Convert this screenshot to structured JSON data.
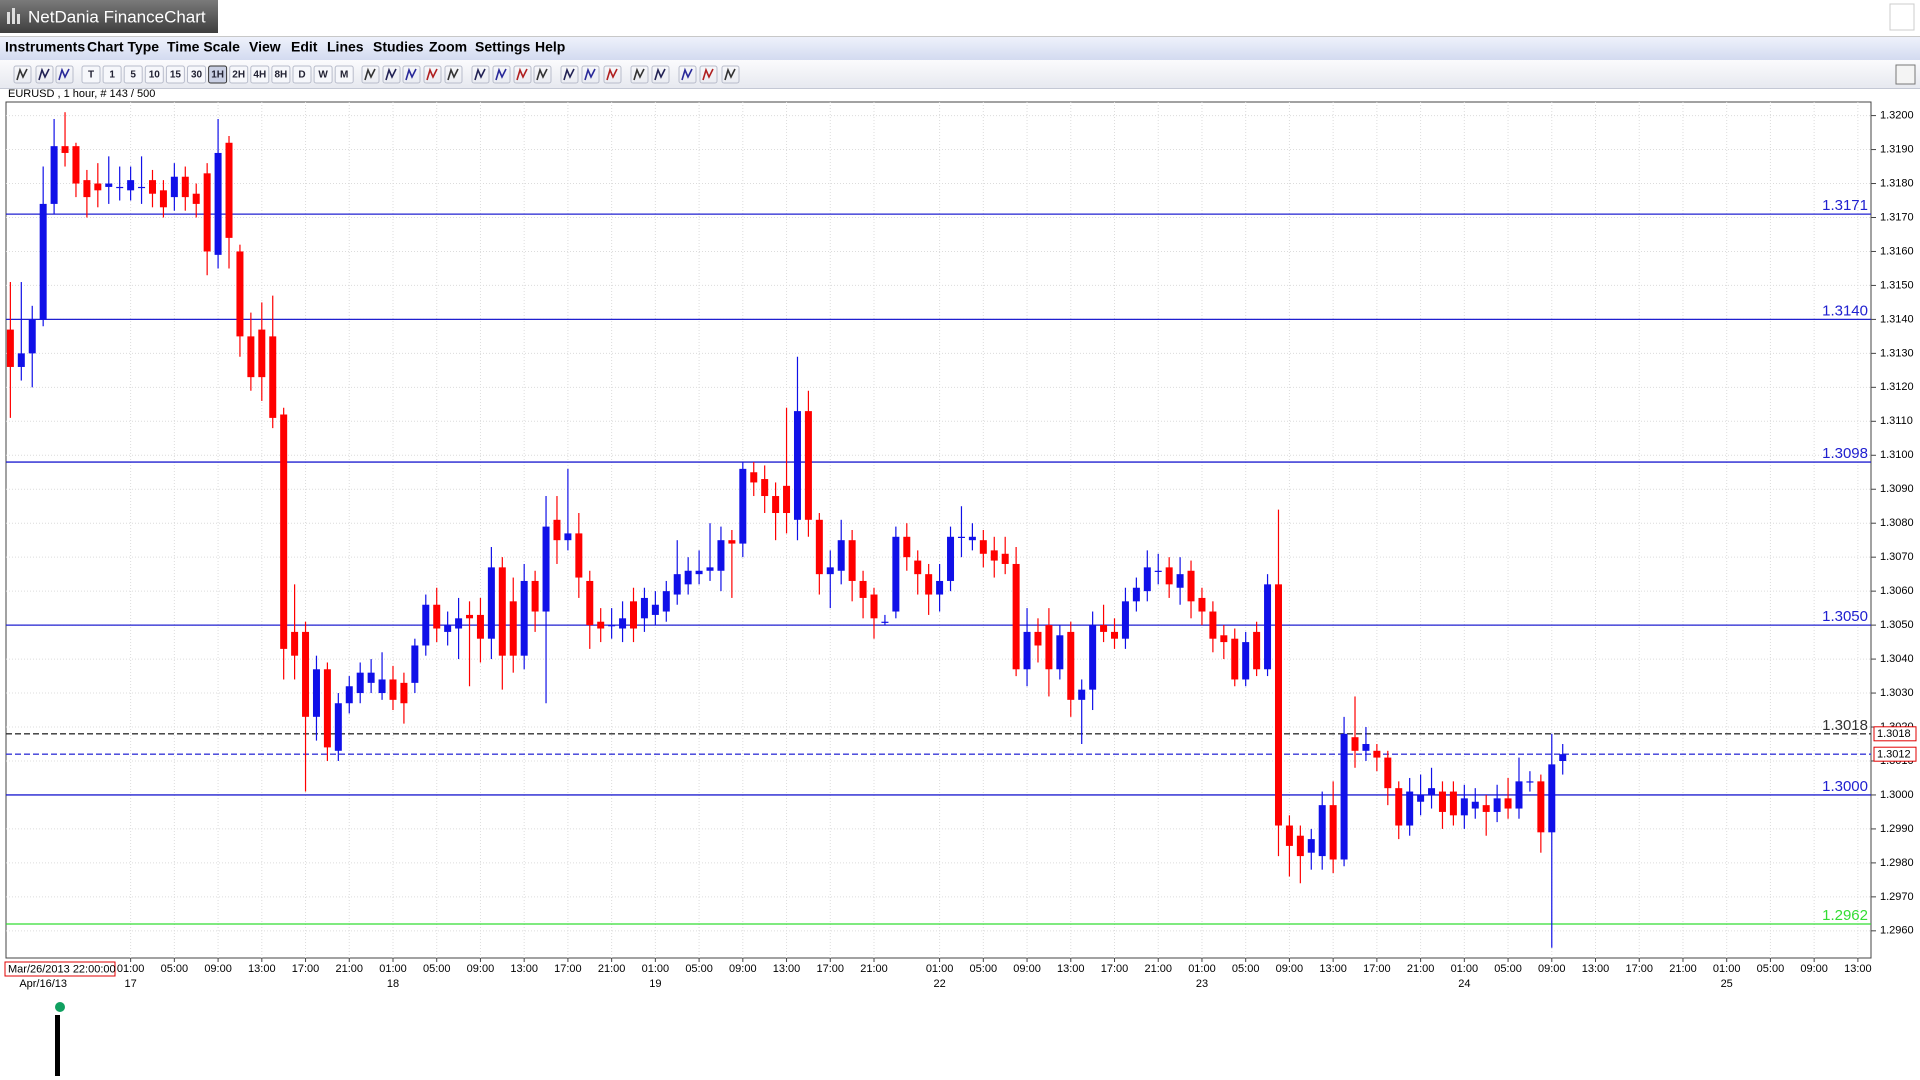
{
  "window": {
    "title": "NetDania FinanceChart",
    "menu": [
      "Instruments",
      "Chart Type",
      "Time Scale",
      "View",
      "Edit",
      "Lines",
      "Studies",
      "Zoom",
      "Settings",
      "Help"
    ],
    "timescales": [
      "T",
      "1",
      "5",
      "10",
      "15",
      "30",
      "1H",
      "2H",
      "4H",
      "8H",
      "D",
      "W",
      "M"
    ],
    "active_timescale": "1H"
  },
  "chart_data": {
    "type": "candlestick",
    "title": "EURUSD , 1 hour, # 143 / 500",
    "cursor_label": "Mar/26/2013 22:00:00",
    "up_color": "#1010e8",
    "down_color": "#ff0000",
    "open": [
      1.3137,
      1.3126,
      1.313,
      1.314,
      1.3174,
      1.3191,
      1.3191,
      1.3181,
      1.318,
      1.3179,
      1.3179,
      1.3178,
      1.3179,
      1.3181,
      1.3178,
      1.3176,
      1.3182,
      1.3177,
      1.3183,
      1.3159,
      1.3192,
      1.316,
      1.3135,
      1.3137,
      1.3135,
      1.3112,
      1.3048,
      1.3048,
      1.3023,
      1.3037,
      1.3013,
      1.3027,
      1.303,
      1.3033,
      1.303,
      1.3034,
      1.3033,
      1.3033,
      1.3044,
      1.3056,
      1.3048,
      1.3049,
      1.3053,
      1.3053,
      1.3046,
      1.3067,
      1.3057,
      1.3041,
      1.3063,
      1.3054,
      1.3081,
      1.3075,
      1.3077,
      1.3063,
      1.3051,
      1.305,
      1.3049,
      1.3057,
      1.3052,
      1.3053,
      1.3054,
      1.3059,
      1.3062,
      1.3065,
      1.3066,
      1.3066,
      1.3075,
      1.3074,
      1.3095,
      1.3093,
      1.3088,
      1.3091,
      1.3081,
      1.3113,
      1.3081,
      1.3065,
      1.3066,
      1.3075,
      1.3063,
      1.3059,
      1.3051,
      1.3054,
      1.3076,
      1.3069,
      1.3065,
      1.3059,
      1.3063,
      1.3076,
      1.3075,
      1.3075,
      1.3072,
      1.3071,
      1.3068,
      1.3037,
      1.3048,
      1.305,
      1.3037,
      1.3048,
      1.3028,
      1.3031,
      1.305,
      1.3048,
      1.3046,
      1.3057,
      1.306,
      1.3066,
      1.3067,
      1.3061,
      1.3066,
      1.3058,
      1.3054,
      1.3047,
      1.3046,
      1.3034,
      1.3048,
      1.3037,
      1.3062,
      1.2991,
      1.2988,
      1.2983,
      1.2982,
      1.2997,
      1.2981,
      1.3017,
      1.3013,
      1.3013,
      1.3011,
      1.3002,
      1.2991,
      1.2998,
      1.3,
      1.3001,
      1.3001,
      1.2994,
      1.2996,
      1.2997,
      1.2995,
      1.2999,
      1.2996,
      1.3004,
      1.3004,
      1.2989,
      1.301
    ],
    "high": [
      1.3151,
      1.3151,
      1.3144,
      1.3185,
      1.3199,
      1.3201,
      1.3192,
      1.3184,
      1.3186,
      1.3188,
      1.3185,
      1.3185,
      1.3188,
      1.3184,
      1.3181,
      1.3186,
      1.3185,
      1.318,
      1.3186,
      1.3199,
      1.3194,
      1.3162,
      1.3142,
      1.3145,
      1.3147,
      1.3114,
      1.3062,
      1.3051,
      1.3041,
      1.3039,
      1.303,
      1.3035,
      1.3039,
      1.304,
      1.3042,
      1.3038,
      1.3036,
      1.3046,
      1.3059,
      1.3061,
      1.3054,
      1.3058,
      1.3057,
      1.3058,
      1.3073,
      1.307,
      1.3064,
      1.3068,
      1.3066,
      1.3088,
      1.3088,
      1.3096,
      1.3083,
      1.3066,
      1.3055,
      1.3055,
      1.3057,
      1.3061,
      1.3061,
      1.306,
      1.3063,
      1.3075,
      1.307,
      1.3072,
      1.308,
      1.3079,
      1.3078,
      1.3098,
      1.3098,
      1.3097,
      1.3092,
      1.3114,
      1.3129,
      1.3119,
      1.3083,
      1.3072,
      1.3081,
      1.3078,
      1.3066,
      1.3061,
      1.3053,
      1.3079,
      1.308,
      1.3072,
      1.3068,
      1.3068,
      1.3079,
      1.3085,
      1.308,
      1.3078,
      1.3076,
      1.3076,
      1.3073,
      1.3055,
      1.3052,
      1.3055,
      1.305,
      1.3051,
      1.3034,
      1.3054,
      1.3056,
      1.3052,
      1.3061,
      1.3064,
      1.3072,
      1.3071,
      1.307,
      1.307,
      1.3069,
      1.3061,
      1.3057,
      1.305,
      1.3049,
      1.3048,
      1.3051,
      1.3065,
      1.3084,
      1.2994,
      1.2991,
      1.299,
      1.3001,
      1.3004,
      1.3023,
      1.3029,
      1.302,
      1.3015,
      1.3013,
      1.3004,
      1.3005,
      1.3006,
      1.3008,
      1.3004,
      1.3004,
      1.3003,
      1.3002,
      1.3,
      1.3003,
      1.3005,
      1.3011,
      1.3007,
      1.3006,
      1.3018,
      1.3015
    ],
    "low": [
      1.3111,
      1.3122,
      1.312,
      1.3138,
      1.3171,
      1.3185,
      1.3176,
      1.317,
      1.3173,
      1.3174,
      1.3175,
      1.3175,
      1.3174,
      1.3173,
      1.317,
      1.3172,
      1.3172,
      1.317,
      1.3153,
      1.3155,
      1.3155,
      1.3129,
      1.3119,
      1.3116,
      1.3108,
      1.3034,
      1.3034,
      1.3001,
      1.3016,
      1.301,
      1.301,
      1.3024,
      1.3027,
      1.303,
      1.3028,
      1.3025,
      1.3021,
      1.303,
      1.3041,
      1.3045,
      1.3044,
      1.304,
      1.3032,
      1.3039,
      1.304,
      1.3031,
      1.3036,
      1.3037,
      1.3048,
      1.3027,
      1.3068,
      1.3072,
      1.3058,
      1.3043,
      1.3045,
      1.3046,
      1.3045,
      1.3045,
      1.3048,
      1.305,
      1.3051,
      1.3056,
      1.3059,
      1.3062,
      1.3063,
      1.306,
      1.3058,
      1.307,
      1.3088,
      1.3083,
      1.3075,
      1.3077,
      1.3075,
      1.3076,
      1.3059,
      1.3055,
      1.3062,
      1.3057,
      1.3052,
      1.3046,
      1.305,
      1.3052,
      1.3066,
      1.3059,
      1.3053,
      1.3054,
      1.306,
      1.307,
      1.3072,
      1.3067,
      1.3064,
      1.3065,
      1.3035,
      1.3032,
      1.3039,
      1.3029,
      1.3034,
      1.3023,
      1.3015,
      1.3025,
      1.3045,
      1.3043,
      1.3043,
      1.3054,
      1.3057,
      1.3062,
      1.3058,
      1.3056,
      1.3052,
      1.305,
      1.3042,
      1.304,
      1.3032,
      1.3032,
      1.3035,
      1.3035,
      1.2982,
      1.2976,
      1.2974,
      1.2978,
      1.2978,
      1.2977,
      1.2979,
      1.3008,
      1.301,
      1.3007,
      1.2997,
      1.2987,
      1.2988,
      1.2994,
      1.2996,
      1.299,
      1.2991,
      1.299,
      1.2993,
      1.2988,
      1.2992,
      1.2993,
      1.2993,
      1.3001,
      1.2983,
      1.2955,
      1.3006
    ],
    "close": [
      1.3126,
      1.313,
      1.314,
      1.3174,
      1.3191,
      1.3189,
      1.318,
      1.3176,
      1.3178,
      1.318,
      1.3179,
      1.3181,
      1.3179,
      1.3177,
      1.3173,
      1.3182,
      1.3176,
      1.3174,
      1.316,
      1.3189,
      1.3164,
      1.3135,
      1.3123,
      1.3123,
      1.3111,
      1.3043,
      1.3041,
      1.3023,
      1.3037,
      1.3014,
      1.3027,
      1.3032,
      1.3036,
      1.3036,
      1.3034,
      1.3028,
      1.3027,
      1.3044,
      1.3056,
      1.3049,
      1.305,
      1.3052,
      1.3052,
      1.3046,
      1.3067,
      1.3041,
      1.3041,
      1.3063,
      1.3054,
      1.3079,
      1.3075,
      1.3077,
      1.3064,
      1.305,
      1.3049,
      1.305,
      1.3052,
      1.3049,
      1.3058,
      1.3056,
      1.306,
      1.3065,
      1.3066,
      1.3066,
      1.3067,
      1.3075,
      1.3074,
      1.3096,
      1.3092,
      1.3088,
      1.3083,
      1.3083,
      1.3113,
      1.3081,
      1.3065,
      1.3067,
      1.3075,
      1.3063,
      1.3058,
      1.3052,
      1.3051,
      1.3076,
      1.307,
      1.3065,
      1.3059,
      1.3063,
      1.3076,
      1.3076,
      1.3076,
      1.3071,
      1.3069,
      1.3068,
      1.3037,
      1.3048,
      1.3044,
      1.3037,
      1.3047,
      1.3028,
      1.3031,
      1.305,
      1.3048,
      1.3046,
      1.3057,
      1.3061,
      1.3067,
      1.3066,
      1.3062,
      1.3065,
      1.3057,
      1.3054,
      1.3046,
      1.3045,
      1.3034,
      1.3045,
      1.3037,
      1.3062,
      1.2991,
      1.2985,
      1.2982,
      1.2987,
      1.2997,
      1.2981,
      1.3018,
      1.3013,
      1.3015,
      1.3011,
      1.3002,
      1.2991,
      1.3001,
      1.3,
      1.3002,
      1.2995,
      1.2994,
      1.2999,
      1.2998,
      1.2995,
      1.2999,
      1.2996,
      1.3004,
      1.3004,
      1.2989,
      1.3009,
      1.3012
    ],
    "xlim": [
      -0.4,
      170.2
    ],
    "ylim": [
      1.2952,
      1.3204
    ],
    "yticks": [
      {
        "value": 1.296,
        "label": "1.2960"
      },
      {
        "value": 1.297,
        "label": "1.2970"
      },
      {
        "value": 1.298,
        "label": "1.2980"
      },
      {
        "value": 1.299,
        "label": "1.2990"
      },
      {
        "value": 1.3,
        "label": "1.3000"
      },
      {
        "value": 1.301,
        "label": "1.3010"
      },
      {
        "value": 1.302,
        "label": "1.3020"
      },
      {
        "value": 1.303,
        "label": "1.3030"
      },
      {
        "value": 1.304,
        "label": "1.3040"
      },
      {
        "value": 1.305,
        "label": "1.3050"
      },
      {
        "value": 1.306,
        "label": "1.3060"
      },
      {
        "value": 1.307,
        "label": "1.3070"
      },
      {
        "value": 1.308,
        "label": "1.3080"
      },
      {
        "value": 1.309,
        "label": "1.3090"
      },
      {
        "value": 1.31,
        "label": "1.3100"
      },
      {
        "value": 1.311,
        "label": "1.3110"
      },
      {
        "value": 1.312,
        "label": "1.3120"
      },
      {
        "value": 1.313,
        "label": "1.3130"
      },
      {
        "value": 1.314,
        "label": "1.3140"
      },
      {
        "value": 1.315,
        "label": "1.3150"
      },
      {
        "value": 1.316,
        "label": "1.3160"
      },
      {
        "value": 1.317,
        "label": "1.3170"
      },
      {
        "value": 1.318,
        "label": "1.3180"
      },
      {
        "value": 1.319,
        "label": "1.3190"
      },
      {
        "value": 1.32,
        "label": "1.3200"
      }
    ],
    "xticks": [
      {
        "value": 11,
        "label": "01:00"
      },
      {
        "value": 15,
        "label": "05:00"
      },
      {
        "value": 19,
        "label": "09:00"
      },
      {
        "value": 23,
        "label": "13:00"
      },
      {
        "value": 27,
        "label": "17:00"
      },
      {
        "value": 31,
        "label": "21:00"
      },
      {
        "value": 35,
        "label": "01:00"
      },
      {
        "value": 39,
        "label": "05:00"
      },
      {
        "value": 43,
        "label": "09:00"
      },
      {
        "value": 47,
        "label": "13:00"
      },
      {
        "value": 51,
        "label": "17:00"
      },
      {
        "value": 55,
        "label": "21:00"
      },
      {
        "value": 59,
        "label": "01:00"
      },
      {
        "value": 63,
        "label": "05:00"
      },
      {
        "value": 67,
        "label": "09:00"
      },
      {
        "value": 71,
        "label": "13:00"
      },
      {
        "value": 75,
        "label": "17:00"
      },
      {
        "value": 79,
        "label": "21:00"
      },
      {
        "value": 85,
        "label": "01:00"
      },
      {
        "value": 89,
        "label": "05:00"
      },
      {
        "value": 93,
        "label": "09:00"
      },
      {
        "value": 97,
        "label": "13:00"
      },
      {
        "value": 101,
        "label": "17:00"
      },
      {
        "value": 105,
        "label": "21:00"
      },
      {
        "value": 109,
        "label": "01:00"
      },
      {
        "value": 113,
        "label": "05:00"
      },
      {
        "value": 117,
        "label": "09:00"
      },
      {
        "value": 121,
        "label": "13:00"
      },
      {
        "value": 125,
        "label": "17:00"
      },
      {
        "value": 129,
        "label": "21:00"
      },
      {
        "value": 133,
        "label": "01:00"
      },
      {
        "value": 137,
        "label": "05:00"
      },
      {
        "value": 141,
        "label": "09:00"
      },
      {
        "value": 145,
        "label": "13:00"
      },
      {
        "value": 149,
        "label": "17:00"
      },
      {
        "value": 153,
        "label": "21:00"
      },
      {
        "value": 157,
        "label": "01:00"
      },
      {
        "value": 161,
        "label": "05:00"
      },
      {
        "value": 165,
        "label": "09:00"
      },
      {
        "value": 169,
        "label": "13:00"
      }
    ],
    "day_labels": [
      {
        "value": 3,
        "label": "Apr/16/13"
      },
      {
        "value": 11,
        "label": "17"
      },
      {
        "value": 35,
        "label": "18"
      },
      {
        "value": 59,
        "label": "19"
      },
      {
        "value": 85,
        "label": "22"
      },
      {
        "value": 109,
        "label": "23"
      },
      {
        "value": 133,
        "label": "24"
      },
      {
        "value": 157,
        "label": "25"
      }
    ],
    "grid": true,
    "levels": [
      {
        "value": 1.3171,
        "label": "1.3171",
        "color": "#2020d0",
        "style": "solid"
      },
      {
        "value": 1.314,
        "label": "1.3140",
        "color": "#2020d0",
        "style": "solid"
      },
      {
        "value": 1.3098,
        "label": "1.3098",
        "color": "#2020d0",
        "style": "solid"
      },
      {
        "value": 1.305,
        "label": "1.3050",
        "color": "#2020d0",
        "style": "solid"
      },
      {
        "value": 1.3018,
        "label": "1.3018",
        "color": "#333333",
        "style": "dashed"
      },
      {
        "value": 1.3012,
        "color": "#3a3ad8",
        "style": "dashed"
      },
      {
        "value": 1.3,
        "label": "1.3000",
        "color": "#2020d0",
        "style": "solid"
      },
      {
        "value": 1.2962,
        "label": "1.2962",
        "color": "#33dd33",
        "style": "solid"
      }
    ],
    "axis_markers": [
      {
        "value": 1.3018,
        "label": "1.3018",
        "color": "#e00000"
      },
      {
        "value": 1.3012,
        "label": "1.3012",
        "color": "#e00000"
      }
    ]
  }
}
